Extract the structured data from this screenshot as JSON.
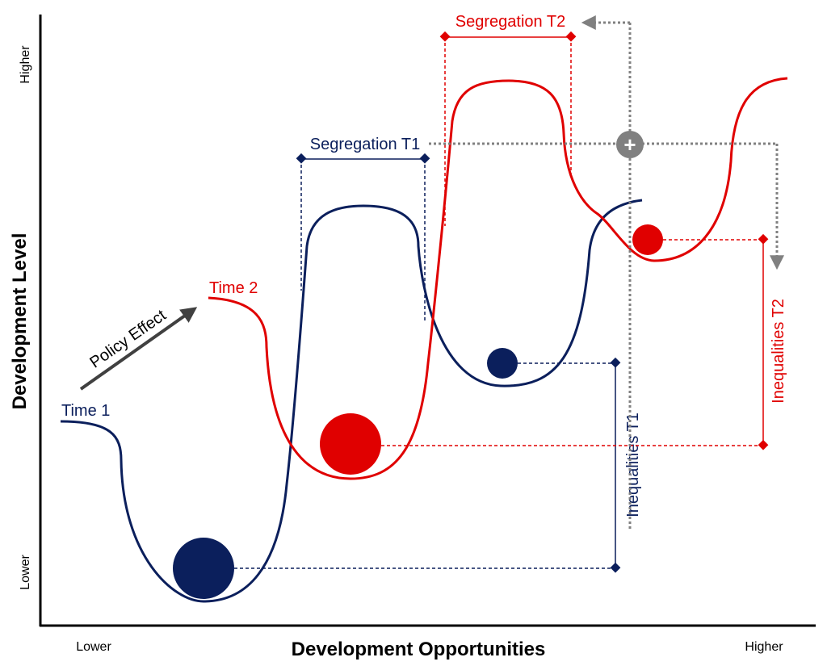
{
  "axes": {
    "x_title": "Development Opportunities",
    "y_title": "Development Level",
    "x_low": "Lower",
    "x_high": "Higher",
    "y_low": "Lower",
    "y_high": "Higher"
  },
  "series": {
    "time1_label": "Time 1",
    "time2_label": "Time 2"
  },
  "annotations": {
    "policy_effect": "Policy Effect",
    "segregation_t1": "Segregation T1",
    "segregation_t2": "Segregation T2",
    "inequalities_t1": "Inequalities T1",
    "inequalities_t2": "Inequalities T2",
    "plus_symbol": "+"
  },
  "colors": {
    "time1": "#0b1f5c",
    "time2": "#e00000",
    "arrow_gray": "#808080",
    "policy_arrow": "#404040",
    "axis": "#000000"
  }
}
